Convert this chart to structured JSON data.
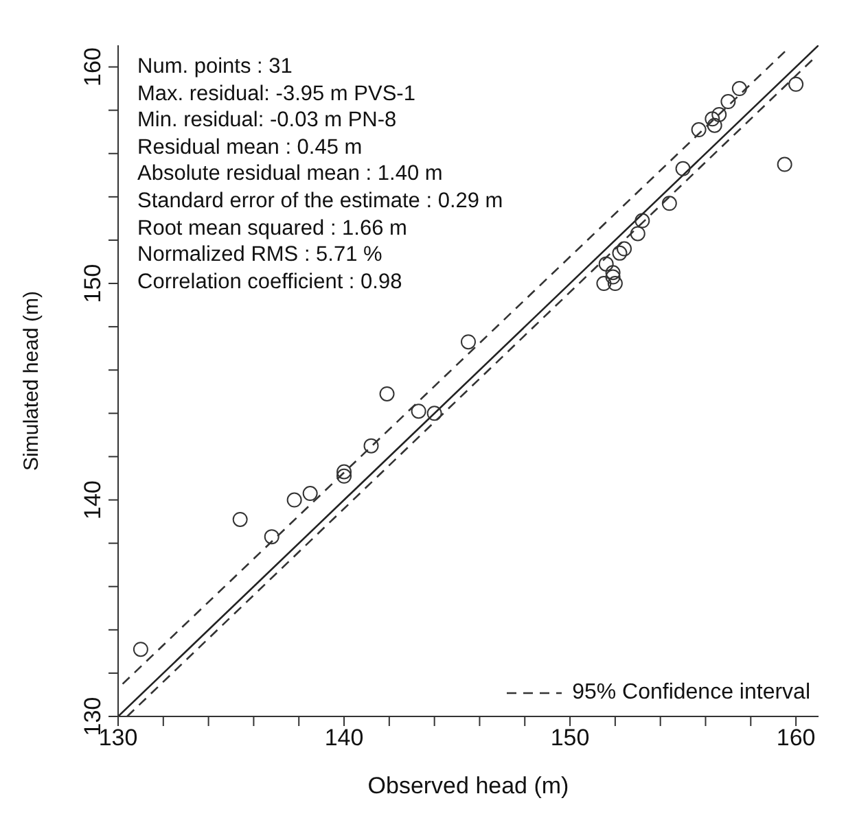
{
  "chart_data": {
    "type": "scatter",
    "xlabel": "Observed head (m)",
    "ylabel": "Simulated head (m)",
    "xlim": [
      130,
      161
    ],
    "ylim": [
      130,
      161
    ],
    "xticks": [
      130,
      {
        "value": 132,
        "label": null
      },
      {
        "value": 134,
        "label": null
      },
      {
        "value": 136,
        "label": null
      },
      {
        "value": 138,
        "label": null
      },
      140,
      {
        "value": 142,
        "label": null
      },
      {
        "value": 144,
        "label": null
      },
      {
        "value": 146,
        "label": null
      },
      {
        "value": 148,
        "label": null
      },
      150,
      {
        "value": 152,
        "label": null
      },
      {
        "value": 154,
        "label": null
      },
      {
        "value": 156,
        "label": null
      },
      {
        "value": 158,
        "label": null
      },
      160
    ],
    "yticks": [
      130,
      {
        "value": 132,
        "label": null
      },
      {
        "value": 134,
        "label": null
      },
      {
        "value": 136,
        "label": null
      },
      {
        "value": 138,
        "label": null
      },
      140,
      {
        "value": 142,
        "label": null
      },
      {
        "value": 144,
        "label": null
      },
      {
        "value": 146,
        "label": null
      },
      {
        "value": 148,
        "label": null
      },
      150,
      {
        "value": 152,
        "label": null
      },
      {
        "value": 154,
        "label": null
      },
      {
        "value": 156,
        "label": null
      },
      {
        "value": 158,
        "label": null
      },
      160
    ],
    "marker": "circle",
    "grid": false,
    "legend": "bottom right",
    "series": [
      {
        "color": "#333333",
        "x": [
          131.0,
          135.4,
          136.8,
          137.8,
          138.5,
          140.0,
          140.0,
          141.2,
          141.9,
          143.3,
          144.0,
          145.5,
          151.5,
          152.0,
          151.9,
          151.9,
          151.6,
          152.2,
          152.4,
          153.0,
          153.2,
          154.4,
          155.0,
          155.7,
          156.3,
          156.4,
          156.6,
          157.0,
          157.5,
          159.5,
          160.0
        ],
        "values": [
          133.1,
          139.1,
          138.3,
          140.0,
          140.3,
          141.3,
          141.1,
          142.5,
          144.9,
          144.1,
          144.0,
          147.3,
          150.0,
          150.0,
          150.3,
          150.5,
          150.9,
          151.4,
          151.6,
          152.3,
          152.9,
          153.7,
          155.3,
          157.1,
          157.6,
          157.3,
          157.8,
          158.4,
          159.0,
          155.5,
          159.2
        ]
      },
      {
        "type": "line",
        "marker": "none",
        "color": "#222222",
        "line_style": "solid",
        "x": [
          130,
          161
        ],
        "values": [
          130,
          161
        ]
      },
      {
        "type": "line",
        "name": "95% Confidence interval",
        "marker": "none",
        "color": "#333333",
        "line_style": "dashed",
        "x": [
          130.2,
          159.6
        ],
        "values": [
          131.5,
          160.8
        ]
      },
      {
        "type": "line",
        "marker": "none",
        "color": "#333333",
        "line_style": "dashed",
        "x": [
          130.4,
          160.9
        ],
        "values": [
          130,
          160.5
        ]
      }
    ],
    "annotations": [
      "Num. points : 31",
      "Max. residual: -3.95 m PVS-1",
      "Min. residual: -0.03 m PN-8",
      "Residual mean : 0.45 m",
      "Absolute residual mean : 1.40 m",
      "Standard error of the estimate : 0.29 m",
      "Root mean squared : 1.66 m",
      "Normalized RMS : 5.71 %",
      "Correlation coefficient : 0.98"
    ]
  }
}
